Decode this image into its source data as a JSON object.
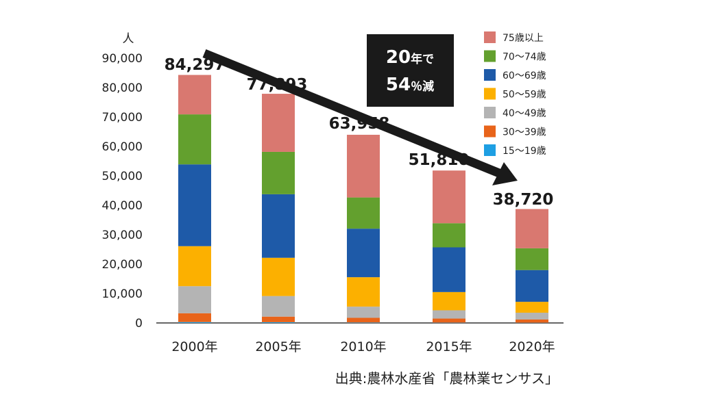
{
  "chart_data": {
    "type": "bar",
    "stacked": true,
    "y_unit": "人",
    "ylim": [
      0,
      90000
    ],
    "yticks": [
      "0",
      "10,000",
      "20,000",
      "30,000",
      "40,000",
      "50,000",
      "60,000",
      "70,000",
      "80,000",
      "90,000"
    ],
    "categories": [
      "2000年",
      "2005年",
      "2010年",
      "2015年",
      "2020年"
    ],
    "totals": [
      84297,
      77893,
      63958,
      51810,
      38720
    ],
    "total_labels": [
      "84,297",
      "77,893",
      "63,958",
      "51,810",
      "38,720"
    ],
    "series": [
      {
        "name": "15〜19歳",
        "color": "#1e9fe3",
        "values": [
          300,
          250,
          150,
          100,
          80
        ]
      },
      {
        "name": "30〜39歳",
        "color": "#e8641a",
        "values": [
          3000,
          1900,
          1600,
          1400,
          1100
        ]
      },
      {
        "name": "40〜49歳",
        "color": "#b4b4b4",
        "values": [
          9200,
          7000,
          3800,
          2800,
          2300
        ]
      },
      {
        "name": "50〜59歳",
        "color": "#fcb000",
        "values": [
          13600,
          13000,
          10000,
          6200,
          3700
        ]
      },
      {
        "name": "60〜69歳",
        "color": "#1e5aa8",
        "values": [
          27800,
          21600,
          16500,
          15200,
          10800
        ]
      },
      {
        "name": "70〜74歳",
        "color": "#63a02e",
        "values": [
          17000,
          14400,
          10600,
          8200,
          7400
        ]
      },
      {
        "name": "75歳以上",
        "color": "#d97870",
        "values": [
          13397,
          19743,
          21308,
          17910,
          13340
        ]
      }
    ],
    "legend_position": "top-right",
    "grid": false
  },
  "callout": {
    "line1_big": "20",
    "line1_small": "年で",
    "line2_big": "54",
    "line2_small": "％減"
  },
  "source": "出典:農林水産省「農林業センサス」"
}
